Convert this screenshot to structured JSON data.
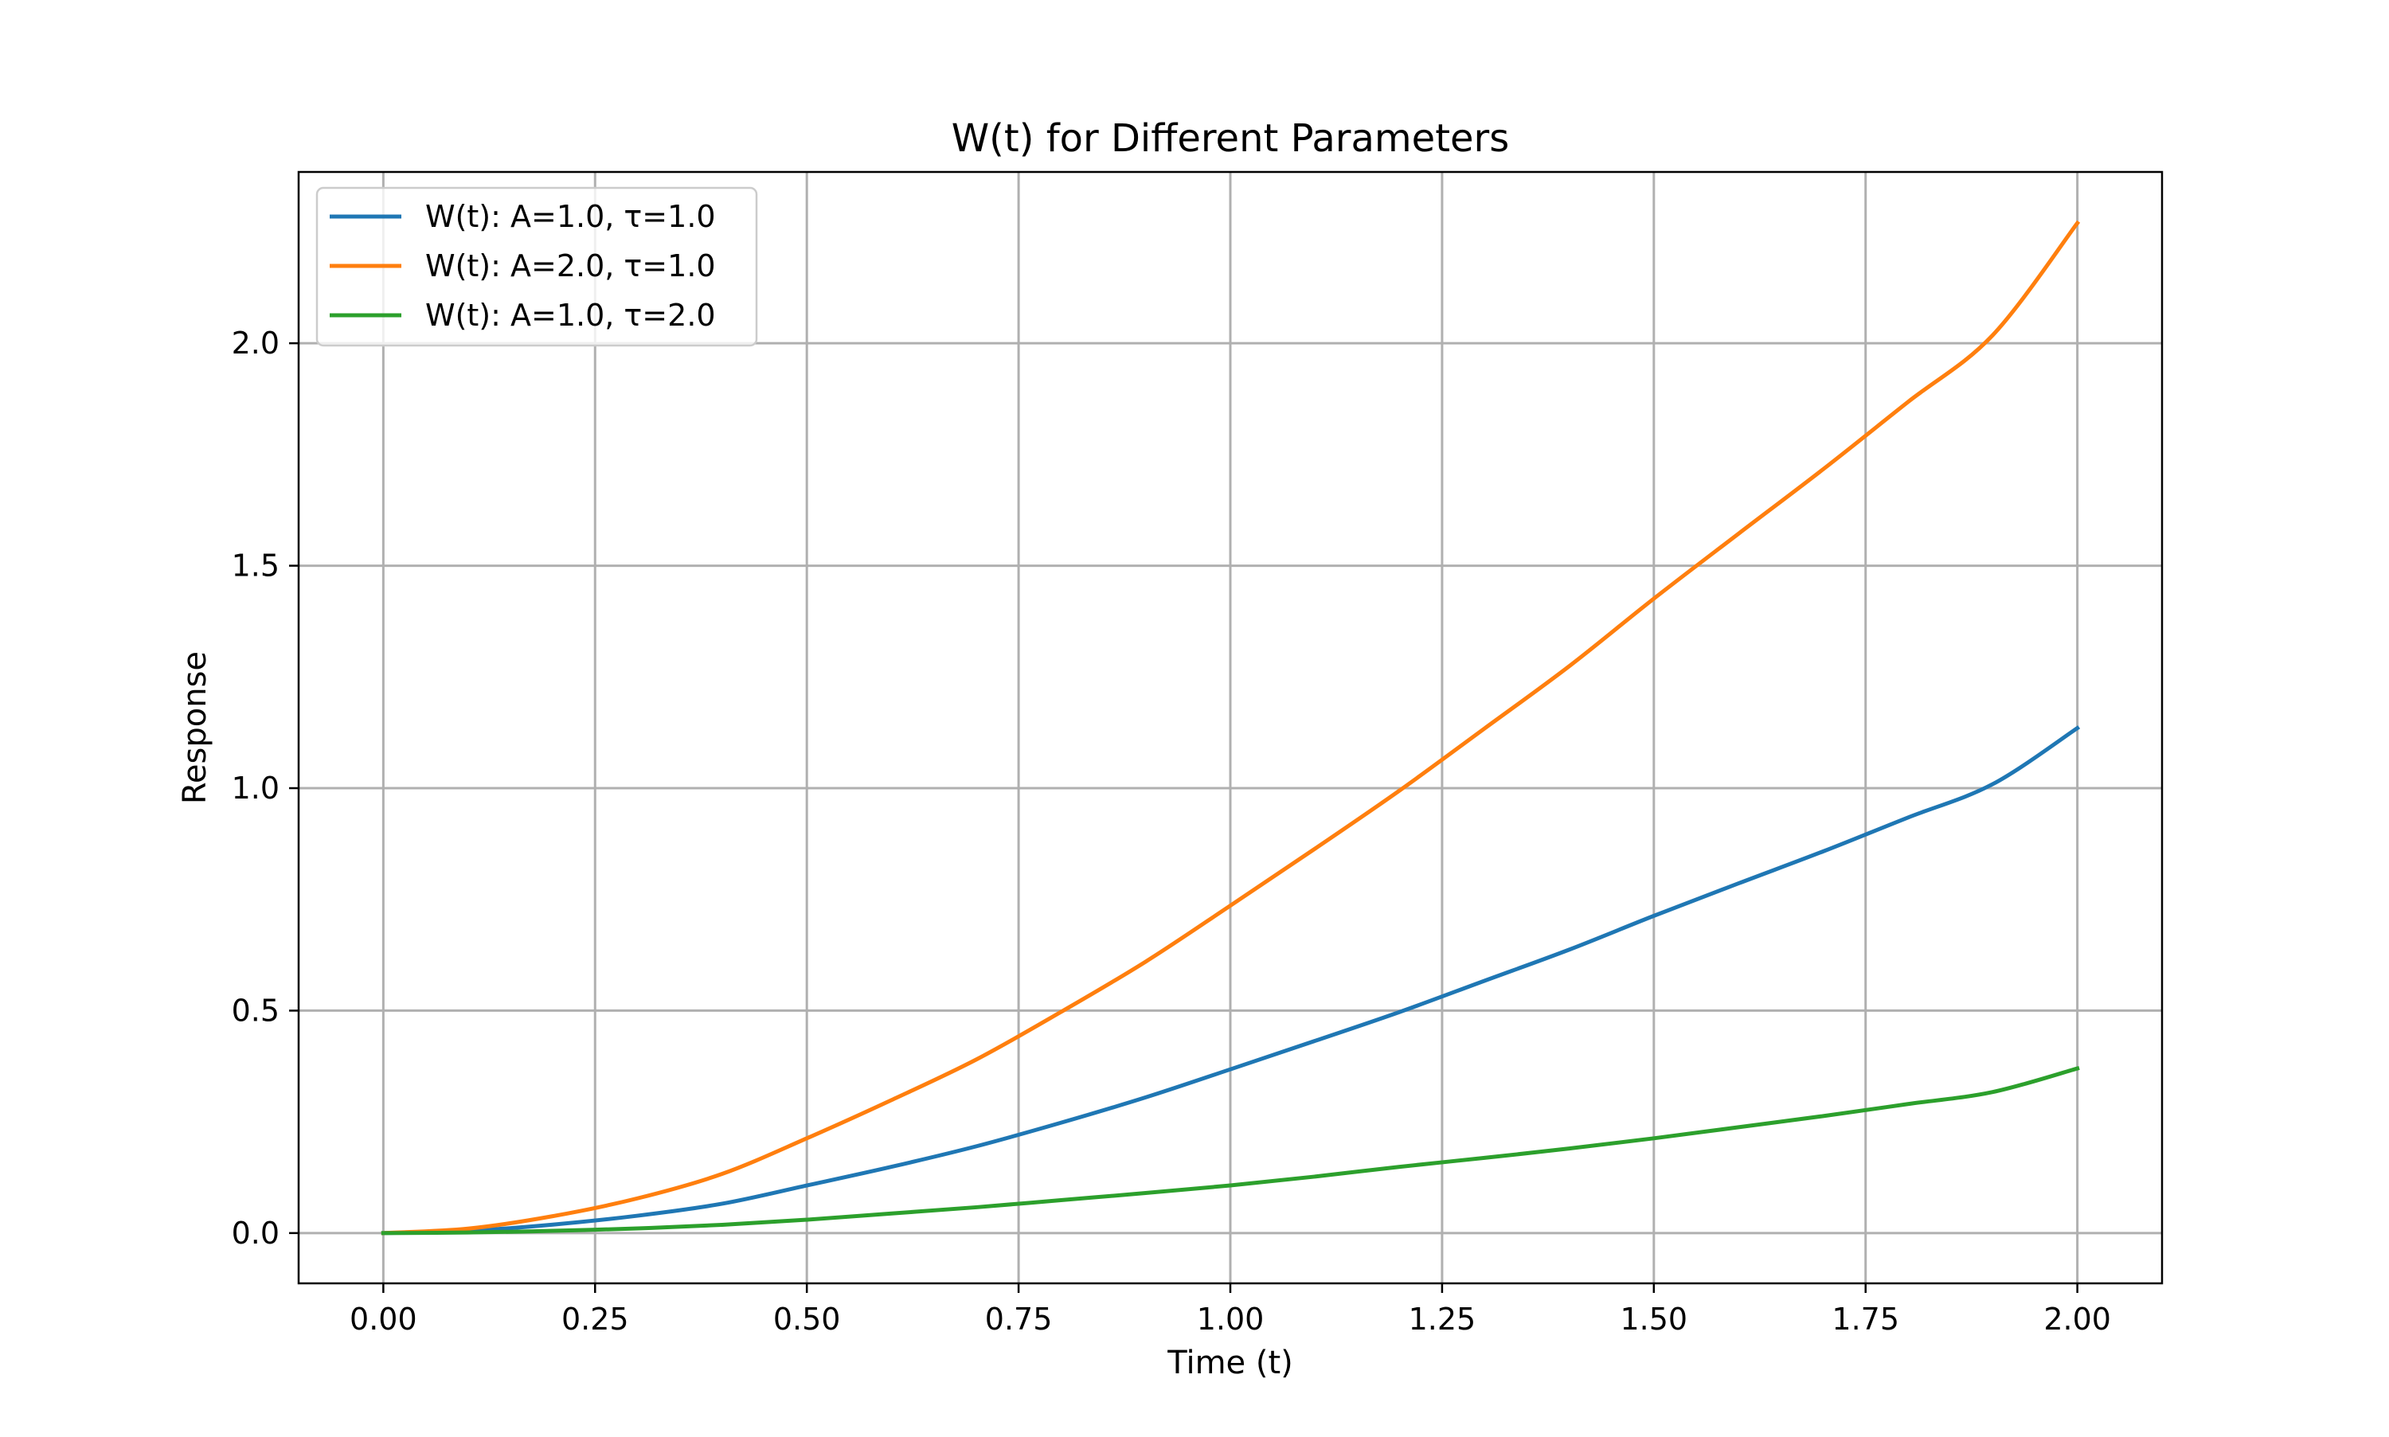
{
  "chart_data": {
    "type": "line",
    "title": "W(t) for Different Parameters",
    "xlabel": "Time (t)",
    "ylabel": "Response",
    "xlim": [
      -0.1,
      2.1
    ],
    "ylim": [
      -0.113,
      2.385
    ],
    "x_ticks": [
      0,
      0.25,
      0.5,
      0.75,
      1.0,
      1.25,
      1.5,
      1.75,
      2.0
    ],
    "x_tick_labels": [
      "0.00",
      "0.25",
      "0.50",
      "0.75",
      "1.00",
      "1.25",
      "1.50",
      "1.75",
      "2.00"
    ],
    "y_ticks": [
      0,
      0.5,
      1.0,
      1.5,
      2.0
    ],
    "y_tick_labels": [
      "0.0",
      "0.5",
      "1.0",
      "1.5",
      "2.0"
    ],
    "grid": true,
    "legend_position": "top-left",
    "x": [
      0,
      0.1,
      0.2,
      0.3,
      0.4,
      0.5,
      0.6,
      0.7,
      0.8,
      0.9,
      1.0,
      1.1,
      1.2,
      1.3,
      1.4,
      1.5,
      1.6,
      1.7,
      1.8,
      1.9,
      2.0
    ],
    "series": [
      {
        "name": "W(t): A=1.0, τ=1.0",
        "color": "#1f77b4",
        "values": [
          0,
          0.005,
          0.019,
          0.039,
          0.066,
          0.107,
          0.149,
          0.195,
          0.248,
          0.305,
          0.368,
          0.432,
          0.497,
          0.567,
          0.637,
          0.713,
          0.786,
          0.858,
          0.934,
          1.009,
          1.135
        ]
      },
      {
        "name": "W(t): A=2.0, τ=1.0",
        "color": "#ff7f0e",
        "values": [
          0,
          0.01,
          0.038,
          0.078,
          0.133,
          0.213,
          0.299,
          0.39,
          0.497,
          0.61,
          0.736,
          0.864,
          0.995,
          1.134,
          1.274,
          1.426,
          1.572,
          1.717,
          1.868,
          2.018,
          2.27
        ]
      },
      {
        "name": "W(t): A=1.0, τ=2.0",
        "color": "#2ca02c",
        "values": [
          0,
          0.0012,
          0.005,
          0.0105,
          0.0185,
          0.03,
          0.044,
          0.058,
          0.074,
          0.09,
          0.107,
          0.127,
          0.149,
          0.169,
          0.19,
          0.213,
          0.238,
          0.263,
          0.29,
          0.317,
          0.37
        ]
      }
    ]
  }
}
